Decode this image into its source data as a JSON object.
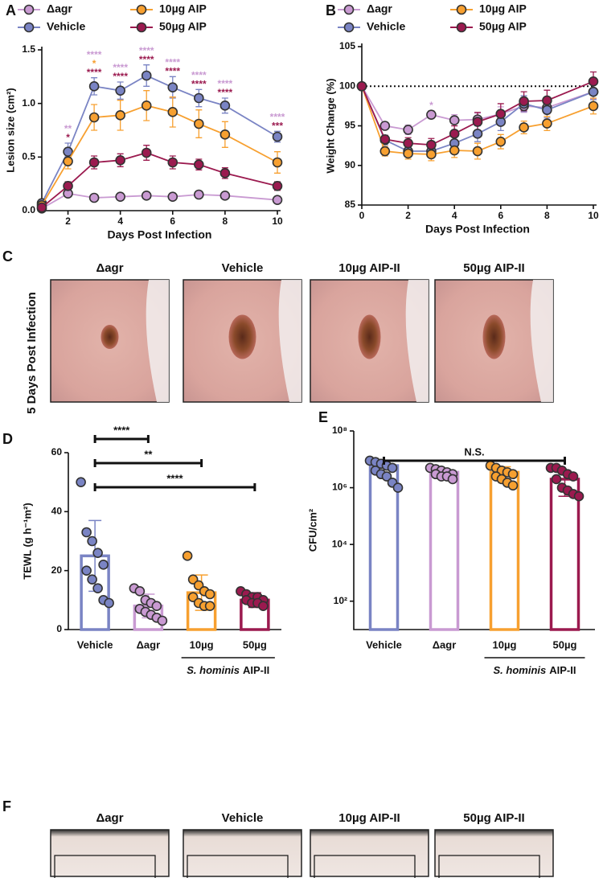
{
  "chart_data": [
    {
      "type": "line",
      "panel": "A",
      "x_label": "Days Post Infection",
      "y_label": "Lesion size (cm²)",
      "x": [
        1,
        2,
        3,
        4,
        5,
        6,
        7,
        8,
        10
      ],
      "xlim": [
        1,
        10
      ],
      "xticks": [
        2,
        4,
        6,
        8,
        10
      ],
      "ylim": [
        0,
        1.5
      ],
      "yticks": [
        {
          "value": 0,
          "label": "0.0"
        },
        0.5,
        {
          "value": 1,
          "label": "1.0"
        },
        1.5
      ],
      "series": [
        {
          "name": "Δagr",
          "color": "#c99ad2",
          "values": [
            0.02,
            0.16,
            0.12,
            0.13,
            0.14,
            0.13,
            0.15,
            0.14,
            0.1
          ],
          "errors": [
            0.01,
            0.03,
            0.02,
            0.02,
            0.02,
            0.02,
            0.02,
            0.02,
            0.02
          ]
        },
        {
          "name": "Vehicle",
          "color": "#7a84c4",
          "values": [
            0.07,
            0.55,
            1.16,
            1.12,
            1.26,
            1.15,
            1.05,
            0.98,
            0.69
          ],
          "errors": [
            0.02,
            0.08,
            0.08,
            0.08,
            0.1,
            0.1,
            0.08,
            0.07,
            0.05
          ]
        },
        {
          "name": "10µg AIP",
          "color": "#f7a030",
          "values": [
            0.05,
            0.46,
            0.87,
            0.89,
            0.98,
            0.92,
            0.81,
            0.71,
            0.45
          ],
          "errors": [
            0.02,
            0.07,
            0.12,
            0.14,
            0.14,
            0.14,
            0.13,
            0.12,
            0.1
          ]
        },
        {
          "name": "50µg AIP",
          "color": "#9b1a4f",
          "values": [
            0.03,
            0.23,
            0.45,
            0.47,
            0.54,
            0.45,
            0.43,
            0.35,
            0.23
          ],
          "errors": [
            0.01,
            0.04,
            0.06,
            0.06,
            0.07,
            0.06,
            0.05,
            0.05,
            0.04
          ]
        }
      ],
      "annotations": [
        {
          "x": 2,
          "lines": [
            {
              "text": "**",
              "color": "#c99ad2"
            },
            {
              "text": "*",
              "color": "#9b1a4f"
            }
          ]
        },
        {
          "x": 3,
          "lines": [
            {
              "text": "****",
              "color": "#c99ad2"
            },
            {
              "text": "*",
              "color": "#f7a030"
            },
            {
              "text": "****",
              "color": "#9b1a4f"
            }
          ]
        },
        {
          "x": 4,
          "lines": [
            {
              "text": "****",
              "color": "#c99ad2"
            },
            {
              "text": "****",
              "color": "#9b1a4f"
            }
          ]
        },
        {
          "x": 5,
          "lines": [
            {
              "text": "****",
              "color": "#c99ad2"
            },
            {
              "text": "****",
              "color": "#9b1a4f"
            }
          ]
        },
        {
          "x": 6,
          "lines": [
            {
              "text": "****",
              "color": "#c99ad2"
            },
            {
              "text": "****",
              "color": "#9b1a4f"
            }
          ]
        },
        {
          "x": 7,
          "lines": [
            {
              "text": "****",
              "color": "#c99ad2"
            },
            {
              "text": "****",
              "color": "#9b1a4f"
            }
          ]
        },
        {
          "x": 8,
          "lines": [
            {
              "text": "****",
              "color": "#c99ad2"
            },
            {
              "text": "****",
              "color": "#9b1a4f"
            }
          ]
        },
        {
          "x": 10,
          "lines": [
            {
              "text": "****",
              "color": "#c99ad2"
            },
            {
              "text": "***",
              "color": "#9b1a4f"
            }
          ]
        }
      ]
    },
    {
      "type": "line",
      "panel": "B",
      "x_label": "Days Post Infection",
      "y_label": "Weight Change (%)",
      "x": [
        0,
        1,
        2,
        3,
        4,
        5,
        6,
        7,
        8,
        10
      ],
      "xlim": [
        0,
        10
      ],
      "xticks": [
        0,
        2,
        4,
        6,
        8,
        10
      ],
      "ylim": [
        85,
        105
      ],
      "yticks": [
        85,
        90,
        95,
        100,
        105
      ],
      "hline": 100,
      "series": [
        {
          "name": "Δagr",
          "color": "#c99ad2",
          "values": [
            100,
            95.0,
            94.5,
            96.4,
            95.7,
            95.8,
            96.5,
            97.5,
            97.3,
            99.3
          ],
          "errors": [
            0,
            0.4,
            0.6,
            0.5,
            0.7,
            0.8,
            0.9,
            0.8,
            0.8,
            0.9
          ]
        },
        {
          "name": "Vehicle",
          "color": "#7a84c4",
          "values": [
            100,
            93.2,
            91.8,
            91.8,
            92.8,
            94.0,
            95.5,
            97.8,
            97.0,
            99.3
          ],
          "errors": [
            0,
            0.6,
            0.7,
            0.8,
            0.9,
            1.0,
            1.1,
            1.0,
            1.0,
            1.0
          ]
        },
        {
          "name": "10µg AIP",
          "color": "#f7a030",
          "values": [
            100,
            91.8,
            91.5,
            91.4,
            91.9,
            91.8,
            93.0,
            94.8,
            95.3,
            97.5
          ],
          "errors": [
            0,
            0.6,
            0.7,
            0.8,
            0.9,
            1.0,
            0.9,
            0.8,
            0.9,
            1.0
          ]
        },
        {
          "name": "50µg AIP",
          "color": "#9b1a4f",
          "values": [
            100,
            93.3,
            92.8,
            92.6,
            94.0,
            95.5,
            96.5,
            98.1,
            98.2,
            100.6
          ],
          "errors": [
            0,
            0.5,
            0.7,
            0.8,
            1.0,
            1.2,
            1.3,
            1.2,
            1.3,
            1.2
          ]
        }
      ],
      "annotations": [
        {
          "x": 3,
          "lines": [
            {
              "text": "*",
              "color": "#c99ad2"
            }
          ]
        }
      ]
    },
    {
      "type": "barscatter",
      "panel": "D",
      "y_label": "TEWL (g h⁻¹m²)",
      "categories": [
        "Vehicle",
        "Δagr",
        "10µg",
        "50µg"
      ],
      "colors": [
        "#7a84c4",
        "#c99ad2",
        "#f7a030",
        "#9b1a4f"
      ],
      "values": [
        25,
        8,
        12.5,
        10
      ],
      "errors": [
        12,
        4,
        6,
        2.5
      ],
      "points": [
        [
          50,
          33,
          30,
          26,
          22,
          20,
          17,
          14,
          10,
          9
        ],
        [
          14,
          13,
          10,
          9,
          8,
          7,
          6,
          5,
          4,
          3
        ],
        [
          25,
          17,
          15,
          13,
          12,
          11,
          9,
          8,
          8
        ],
        [
          13,
          12,
          11,
          11,
          10,
          10,
          9,
          9,
          8
        ]
      ],
      "ylim": [
        0,
        60
      ],
      "yticks": [
        0,
        20,
        40,
        60
      ],
      "brackets": [
        {
          "between": [
            "Vehicle",
            "Δagr"
          ],
          "label": "****"
        },
        {
          "between": [
            "Vehicle",
            "10µg"
          ],
          "label": "**"
        },
        {
          "between": [
            "Vehicle",
            "50µg"
          ],
          "label": "****"
        }
      ],
      "group": {
        "categories": [
          "10µg",
          "50µg"
        ],
        "label": [
          "S. hominis",
          "AIP-II"
        ]
      }
    },
    {
      "type": "barscatter",
      "panel": "E",
      "y_label": "CFU/cm²",
      "log_scale": true,
      "categories": [
        "Vehicle",
        "Δagr",
        "10µg",
        "50µg"
      ],
      "colors": [
        "#7a84c4",
        "#c99ad2",
        "#f7a030",
        "#9b1a4f"
      ],
      "values": [
        6000000,
        3500000,
        3500000,
        2000000
      ],
      "errors": [
        3000000,
        1000000,
        2000000,
        1500000
      ],
      "points": [
        [
          9000000,
          8000000,
          7000000,
          6000000,
          5000000,
          4000000,
          3000000,
          2500000,
          1500000,
          1000000
        ],
        [
          5000000,
          4500000,
          4000000,
          3500000,
          3000000,
          3000000,
          2500000,
          2500000,
          2000000
        ],
        [
          6000000,
          5000000,
          4000000,
          3500000,
          3000000,
          2500000,
          2000000,
          1500000,
          1200000
        ],
        [
          5000000,
          5000000,
          4000000,
          3000000,
          2500000,
          2000000,
          1000000,
          800000,
          600000,
          500000
        ]
      ],
      "ylim": [
        10,
        100000000
      ],
      "yticks": [
        {
          "value": 100,
          "label": "10²"
        },
        {
          "value": 10000,
          "label": "10⁴"
        },
        {
          "value": 1000000,
          "label": "10⁶"
        },
        {
          "value": 100000000,
          "label": "10⁸"
        }
      ],
      "brackets": [
        {
          "between": [
            "Vehicle",
            "50µg"
          ],
          "label": "N.S."
        }
      ],
      "group": {
        "categories": [
          "10µg",
          "50µg"
        ],
        "label": [
          "S. hominis",
          "AIP-II"
        ]
      }
    }
  ],
  "photo_panels": [
    {
      "panel": "C",
      "side_label": "5 Days Post Infection",
      "captions": [
        "Δagr",
        "Vehicle",
        "10µg AIP-II",
        "50µg AIP-II"
      ]
    },
    {
      "panel": "F",
      "captions": [
        "Δagr",
        "Vehicle",
        "10µg AIP-II",
        "50µg AIP-II"
      ]
    }
  ]
}
